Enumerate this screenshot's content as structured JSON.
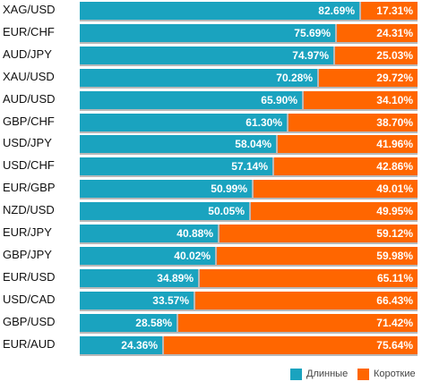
{
  "chart_data": {
    "type": "bar",
    "orientation": "horizontal",
    "stacked": true,
    "categories": [
      "XAG/USD",
      "EUR/CHF",
      "AUD/JPY",
      "XAU/USD",
      "AUD/USD",
      "GBP/CHF",
      "USD/JPY",
      "USD/CHF",
      "EUR/GBP",
      "NZD/USD",
      "EUR/JPY",
      "GBP/JPY",
      "EUR/USD",
      "USD/CAD",
      "GBP/USD",
      "EUR/AUD"
    ],
    "series": [
      {
        "name": "Длинные",
        "color": "#1aa3bf",
        "values": [
          82.69,
          75.69,
          74.97,
          70.28,
          65.9,
          61.3,
          58.04,
          57.14,
          50.99,
          50.05,
          40.88,
          40.02,
          34.89,
          33.57,
          28.58,
          24.36
        ],
        "labels": [
          "82.69%",
          "75.69%",
          "74.97%",
          "70.28%",
          "65.90%",
          "61.30%",
          "58.04%",
          "57.14%",
          "50.99%",
          "50.05%",
          "40.88%",
          "40.02%",
          "34.89%",
          "33.57%",
          "28.58%",
          "24.36%"
        ]
      },
      {
        "name": "Короткие",
        "color": "#ff6600",
        "values": [
          17.31,
          24.31,
          25.03,
          29.72,
          34.1,
          38.7,
          41.96,
          42.86,
          49.01,
          49.95,
          59.12,
          59.98,
          65.11,
          66.43,
          71.42,
          75.64
        ],
        "labels": [
          "17.31%",
          "24.31%",
          "25.03%",
          "29.72%",
          "34.10%",
          "38.70%",
          "41.96%",
          "42.86%",
          "49.01%",
          "49.95%",
          "59.12%",
          "59.98%",
          "65.11%",
          "66.43%",
          "71.42%",
          "75.64%"
        ]
      }
    ],
    "xlim": [
      0,
      100
    ],
    "legend_position": "bottom-right",
    "grid": false
  }
}
